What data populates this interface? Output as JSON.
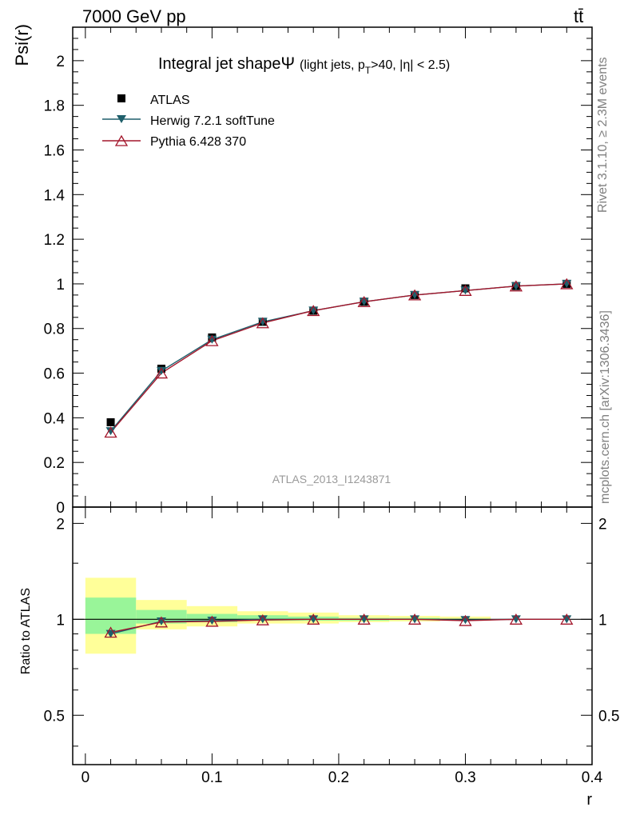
{
  "header": {
    "left": "7000 GeV pp",
    "right": "tt̄"
  },
  "side_labels": {
    "rivet": "Rivet 3.1.10, ≥ 2.3M events",
    "mcplots": "mcplots.cern.ch [arXiv:1306.3436]"
  },
  "colors": {
    "data": "#000000",
    "herwig": "#1f5f6b",
    "pythia": "#a3162b",
    "band_inner": "#99f599",
    "band_outer": "#ffff99"
  },
  "chart_data": [
    {
      "type": "line",
      "title_main": "Integral jet shape",
      "title_symbol": "Ψ",
      "title_sub": "(light jets, p",
      "title_sub_idx": "T",
      "title_sub_rest": ">40, |η| < 2.5)",
      "ylabel": "Psi(r)",
      "xlim": [
        -0.01,
        0.4
      ],
      "ylim": [
        0,
        2.15
      ],
      "yticks": [
        0,
        0.2,
        0.4,
        0.6,
        0.8,
        1,
        1.2,
        1.4,
        1.6,
        1.8,
        2
      ],
      "ytick_labels": [
        "0",
        "0.2",
        "0.4",
        "0.6",
        "0.8",
        "1",
        "1.2",
        "1.4",
        "1.6",
        "1.8",
        "2"
      ],
      "watermark": "ATLAS_2013_I1243871",
      "x": [
        0.02,
        0.06,
        0.1,
        0.14,
        0.18,
        0.22,
        0.26,
        0.3,
        0.34,
        0.38
      ],
      "series": [
        {
          "name": "ATLAS",
          "style": "data",
          "values": [
            0.38,
            0.62,
            0.76,
            0.83,
            0.88,
            0.92,
            0.95,
            0.98,
            0.99,
            1.0
          ]
        },
        {
          "name": "Herwig 7.2.1 softTune",
          "style": "herwig",
          "values": [
            0.34,
            0.61,
            0.75,
            0.83,
            0.88,
            0.92,
            0.95,
            0.97,
            0.99,
            1.0
          ]
        },
        {
          "name": "Pythia 6.428 370",
          "style": "pythia",
          "values": [
            0.335,
            0.6,
            0.745,
            0.825,
            0.88,
            0.92,
            0.95,
            0.97,
            0.99,
            1.0
          ]
        }
      ]
    },
    {
      "type": "line",
      "ylabel": "Ratio to ATLAS",
      "xlabel": "r",
      "xlim": [
        -0.01,
        0.4
      ],
      "ylim": [
        0.35,
        2.25
      ],
      "yticks": [
        0.5,
        1,
        2
      ],
      "ytick_labels": [
        "0.5",
        "1",
        "2"
      ],
      "xticks": [
        0,
        0.1,
        0.2,
        0.3,
        0.4
      ],
      "xtick_labels": [
        "0",
        "0.1",
        "0.2",
        "0.3",
        "0.4"
      ],
      "bands": [
        {
          "x0": 0.0,
          "x1": 0.04,
          "inner": [
            0.9,
            1.17
          ],
          "outer": [
            0.78,
            1.35
          ]
        },
        {
          "x0": 0.04,
          "x1": 0.08,
          "inner": [
            0.97,
            1.07
          ],
          "outer": [
            0.93,
            1.15
          ]
        },
        {
          "x0": 0.08,
          "x1": 0.12,
          "inner": [
            0.98,
            1.04
          ],
          "outer": [
            0.95,
            1.1
          ]
        },
        {
          "x0": 0.12,
          "x1": 0.16,
          "inner": [
            0.99,
            1.03
          ],
          "outer": [
            0.97,
            1.06
          ]
        },
        {
          "x0": 0.16,
          "x1": 0.2,
          "inner": [
            0.99,
            1.02
          ],
          "outer": [
            0.97,
            1.05
          ]
        },
        {
          "x0": 0.2,
          "x1": 0.24,
          "inner": [
            0.99,
            1.01
          ],
          "outer": [
            0.98,
            1.03
          ]
        },
        {
          "x0": 0.24,
          "x1": 0.28,
          "inner": [
            0.995,
            1.01
          ],
          "outer": [
            0.985,
            1.025
          ]
        },
        {
          "x0": 0.28,
          "x1": 0.32,
          "inner": [
            0.995,
            1.005
          ],
          "outer": [
            0.99,
            1.02
          ]
        }
      ],
      "series": [
        {
          "name": "Herwig 7.2.1 softTune",
          "style": "herwig",
          "values": [
            0.9,
            0.985,
            0.99,
            1.0,
            1.0,
            1.0,
            1.0,
            0.995,
            1.0,
            1.0
          ]
        },
        {
          "name": "Pythia 6.428 370",
          "style": "pythia",
          "values": [
            0.91,
            0.98,
            0.985,
            0.995,
            1.0,
            1.0,
            1.0,
            0.99,
            1.0,
            1.0
          ]
        }
      ]
    }
  ]
}
